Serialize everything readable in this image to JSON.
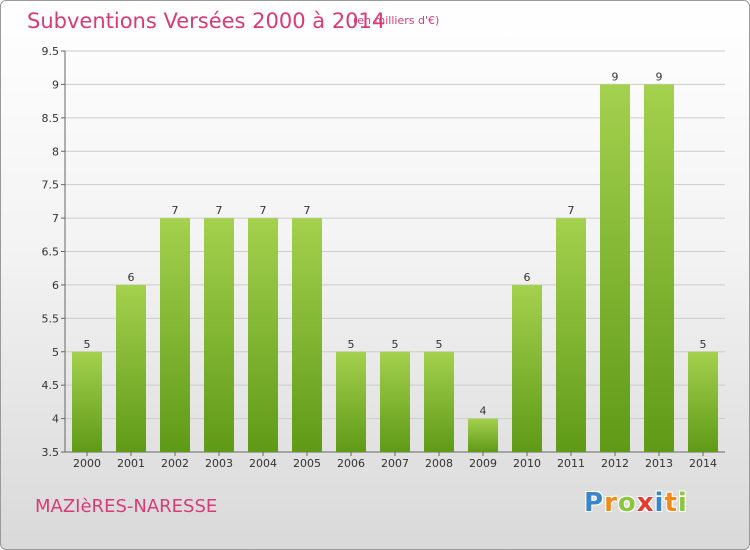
{
  "header": {
    "title": "Subventions Versées 2000 à 2014",
    "unit": "(en milliers d'€)"
  },
  "footer": {
    "town": "MAZIèRES-NARESSE",
    "logo": [
      "P",
      "r",
      "o",
      "x",
      "i",
      "t",
      "i"
    ],
    "logo_colors": [
      "#3a86c8",
      "#f28a1a",
      "#8cc63f",
      "#e63c2f",
      "#3a86c8",
      "#f28a1a",
      "#8cc63f"
    ]
  },
  "colors": {
    "bar_top": "#a4d14e",
    "bar_bottom": "#5f9a17",
    "grid": "#cccccc",
    "title": "#d83b78"
  },
  "chart_data": {
    "type": "bar",
    "title": "Subventions Versées 2000 à 2014",
    "subtitle": "(en milliers d'€)",
    "xlabel": "",
    "ylabel": "",
    "categories": [
      "2000",
      "2001",
      "2002",
      "2003",
      "2004",
      "2005",
      "2006",
      "2007",
      "2008",
      "2009",
      "2010",
      "2011",
      "2012",
      "2013",
      "2014"
    ],
    "values": [
      5,
      6,
      7,
      7,
      7,
      7,
      5,
      5,
      5,
      4,
      6,
      7,
      9,
      9,
      5
    ],
    "ylim": [
      3.5,
      9.5
    ],
    "yticks": [
      "3.5",
      "4",
      "4.5",
      "5",
      "5.5",
      "6",
      "6.5",
      "7",
      "7.5",
      "8",
      "8.5",
      "9",
      "9.5"
    ],
    "grid": true
  }
}
